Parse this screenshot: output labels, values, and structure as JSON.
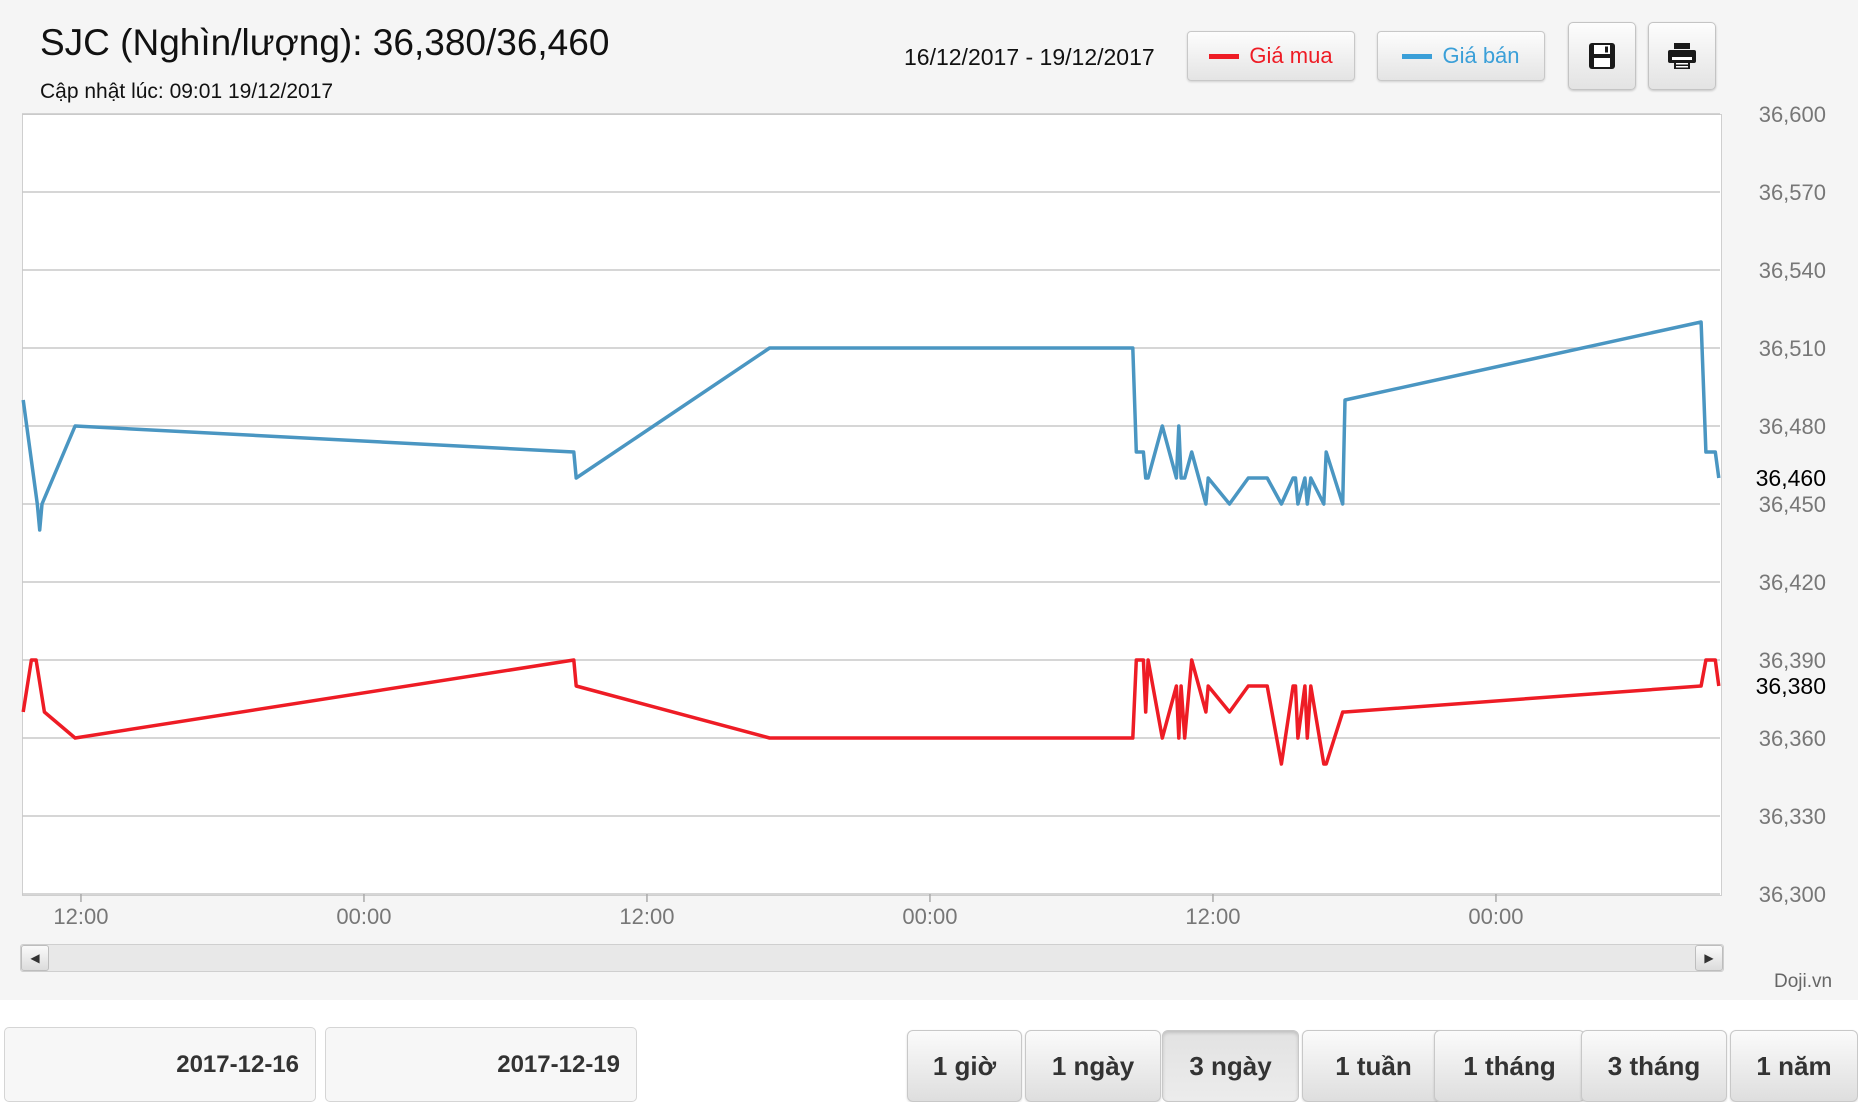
{
  "header": {
    "title": "SJC (Nghìn/lượng): 36,380/36,460",
    "updated": "Cập nhật lúc: 09:01 19/12/2017",
    "date_range": "16/12/2017 - 19/12/2017"
  },
  "legend": [
    {
      "label": "Giá mua",
      "color": "#ee1c25"
    },
    {
      "label": "Giá bán",
      "color": "#3a9fd8"
    }
  ],
  "toolbar": {
    "save_icon": "floppy-disk-icon",
    "print_icon": "printer-icon"
  },
  "credit": "Doji.vn",
  "date_inputs": {
    "from": "2017-12-16",
    "to": "2017-12-19"
  },
  "periods": [
    {
      "label": "1 giờ",
      "active": false
    },
    {
      "label": "1 ngày",
      "active": false
    },
    {
      "label": "3 ngày",
      "active": true
    },
    {
      "label": "1 tuần",
      "active": false
    },
    {
      "label": "1 tháng",
      "active": false
    },
    {
      "label": "3 tháng",
      "active": false
    },
    {
      "label": "1 năm",
      "active": false
    }
  ],
  "chart_data": {
    "type": "line",
    "title": "SJC (Nghìn/lượng): 36,380/36,460",
    "xlabel": "",
    "ylabel": "",
    "ylim": [
      36300,
      36600
    ],
    "xlim": [
      9.5,
      81.5
    ],
    "grid": true,
    "legend_position": "top",
    "x_tick_labels": [
      {
        "x": 12,
        "label": "12:00"
      },
      {
        "x": 24,
        "label": "00:00"
      },
      {
        "x": 36,
        "label": "12:00"
      },
      {
        "x": 48,
        "label": "00:00"
      },
      {
        "x": 60,
        "label": "12:00"
      },
      {
        "x": 72,
        "label": "00:00"
      }
    ],
    "y_ticks": [
      36300,
      36330,
      36360,
      36390,
      36420,
      36450,
      36480,
      36510,
      36540,
      36570,
      36600
    ],
    "y_tick_labels": [
      "36,300",
      "36,330",
      "36,360",
      "36,390",
      "36,420",
      "36,450",
      "36,480",
      "36,510",
      "36,540",
      "36,570",
      "36,600"
    ],
    "last_labels": {
      "buy": "36,380",
      "sell": "36,460"
    },
    "series": [
      {
        "name": "Giá bán",
        "color": "#4a96c2",
        "last_value": 36460,
        "points": [
          [
            9.55,
            36490
          ],
          [
            10.15,
            36450
          ],
          [
            10.25,
            36440
          ],
          [
            10.35,
            36450
          ],
          [
            11.75,
            36480
          ],
          [
            32.9,
            36470
          ],
          [
            33.0,
            36460
          ],
          [
            41.2,
            36510
          ],
          [
            56.6,
            36510
          ],
          [
            56.75,
            36470
          ],
          [
            57.05,
            36470
          ],
          [
            57.15,
            36460
          ],
          [
            57.25,
            36460
          ],
          [
            57.55,
            36470
          ],
          [
            57.85,
            36480
          ],
          [
            58.45,
            36460
          ],
          [
            58.55,
            36480
          ],
          [
            58.65,
            36460
          ],
          [
            58.8,
            36460
          ],
          [
            59.1,
            36470
          ],
          [
            59.4,
            36460
          ],
          [
            59.7,
            36450
          ],
          [
            59.8,
            36460
          ],
          [
            60.7,
            36450
          ],
          [
            61.5,
            36460
          ],
          [
            62.3,
            36460
          ],
          [
            62.6,
            36455
          ],
          [
            62.9,
            36450
          ],
          [
            63.4,
            36460
          ],
          [
            63.5,
            36460
          ],
          [
            63.6,
            36450
          ],
          [
            63.9,
            36460
          ],
          [
            64.0,
            36450
          ],
          [
            64.15,
            36460
          ],
          [
            64.7,
            36450
          ],
          [
            64.8,
            36470
          ],
          [
            65.5,
            36450
          ],
          [
            65.6,
            36490
          ],
          [
            80.7,
            36520
          ],
          [
            80.9,
            36470
          ],
          [
            81.3,
            36470
          ],
          [
            81.45,
            36460
          ]
        ]
      },
      {
        "name": "Giá mua",
        "color": "#ee1c25",
        "last_value": 36380,
        "points": [
          [
            9.55,
            36370
          ],
          [
            9.9,
            36390
          ],
          [
            10.1,
            36390
          ],
          [
            10.45,
            36370
          ],
          [
            11.75,
            36360
          ],
          [
            32.9,
            36390
          ],
          [
            33.0,
            36380
          ],
          [
            41.2,
            36360
          ],
          [
            56.6,
            36360
          ],
          [
            56.75,
            36390
          ],
          [
            57.05,
            36390
          ],
          [
            57.15,
            36370
          ],
          [
            57.25,
            36390
          ],
          [
            57.85,
            36360
          ],
          [
            58.45,
            36380
          ],
          [
            58.55,
            36360
          ],
          [
            58.65,
            36380
          ],
          [
            58.8,
            36360
          ],
          [
            59.1,
            36390
          ],
          [
            59.4,
            36380
          ],
          [
            59.7,
            36370
          ],
          [
            59.8,
            36380
          ],
          [
            60.7,
            36370
          ],
          [
            61.5,
            36380
          ],
          [
            62.3,
            36380
          ],
          [
            62.6,
            36365
          ],
          [
            62.9,
            36350
          ],
          [
            63.4,
            36380
          ],
          [
            63.5,
            36380
          ],
          [
            63.6,
            36360
          ],
          [
            63.9,
            36380
          ],
          [
            64.0,
            36360
          ],
          [
            64.15,
            36380
          ],
          [
            64.7,
            36350
          ],
          [
            64.8,
            36350
          ],
          [
            65.5,
            36370
          ],
          [
            65.6,
            36370
          ],
          [
            80.7,
            36380
          ],
          [
            80.9,
            36390
          ],
          [
            81.3,
            36390
          ],
          [
            81.45,
            36380
          ]
        ]
      }
    ]
  }
}
